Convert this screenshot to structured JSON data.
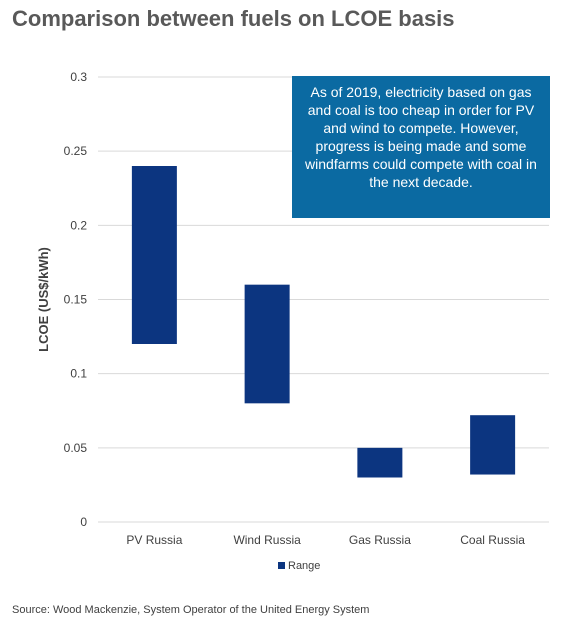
{
  "title": "Comparison between fuels on LCOE basis",
  "source": "Source: Wood Mackenzie, System Operator of the United Energy System",
  "annotation": "As of 2019, electricity based on gas and coal is too cheap in order for PV and wind to compete. However, progress is being made and some windfarms could compete with coal in the next decade.",
  "colors": {
    "bar": "#0c3580",
    "callout": "#0b6aa2",
    "grid": "#d9d9d9"
  },
  "chart_data": {
    "type": "bar",
    "subtype": "floating-range",
    "title": "Comparison between fuels on LCOE basis",
    "xlabel": "",
    "ylabel": "LCOE (US$/kWh)",
    "ylim": [
      0,
      0.3
    ],
    "yticks": [
      "0",
      "0.05",
      "0.1",
      "0.15",
      "0.2",
      "0.25",
      "0.3"
    ],
    "grid": true,
    "legend_position": "bottom",
    "categories": [
      "PV Russia",
      "Wind Russia",
      "Gas Russia",
      "Coal Russia"
    ],
    "series": [
      {
        "name": "Range",
        "low": [
          0.12,
          0.08,
          0.03,
          0.032
        ],
        "high": [
          0.24,
          0.16,
          0.05,
          0.072
        ]
      }
    ]
  }
}
